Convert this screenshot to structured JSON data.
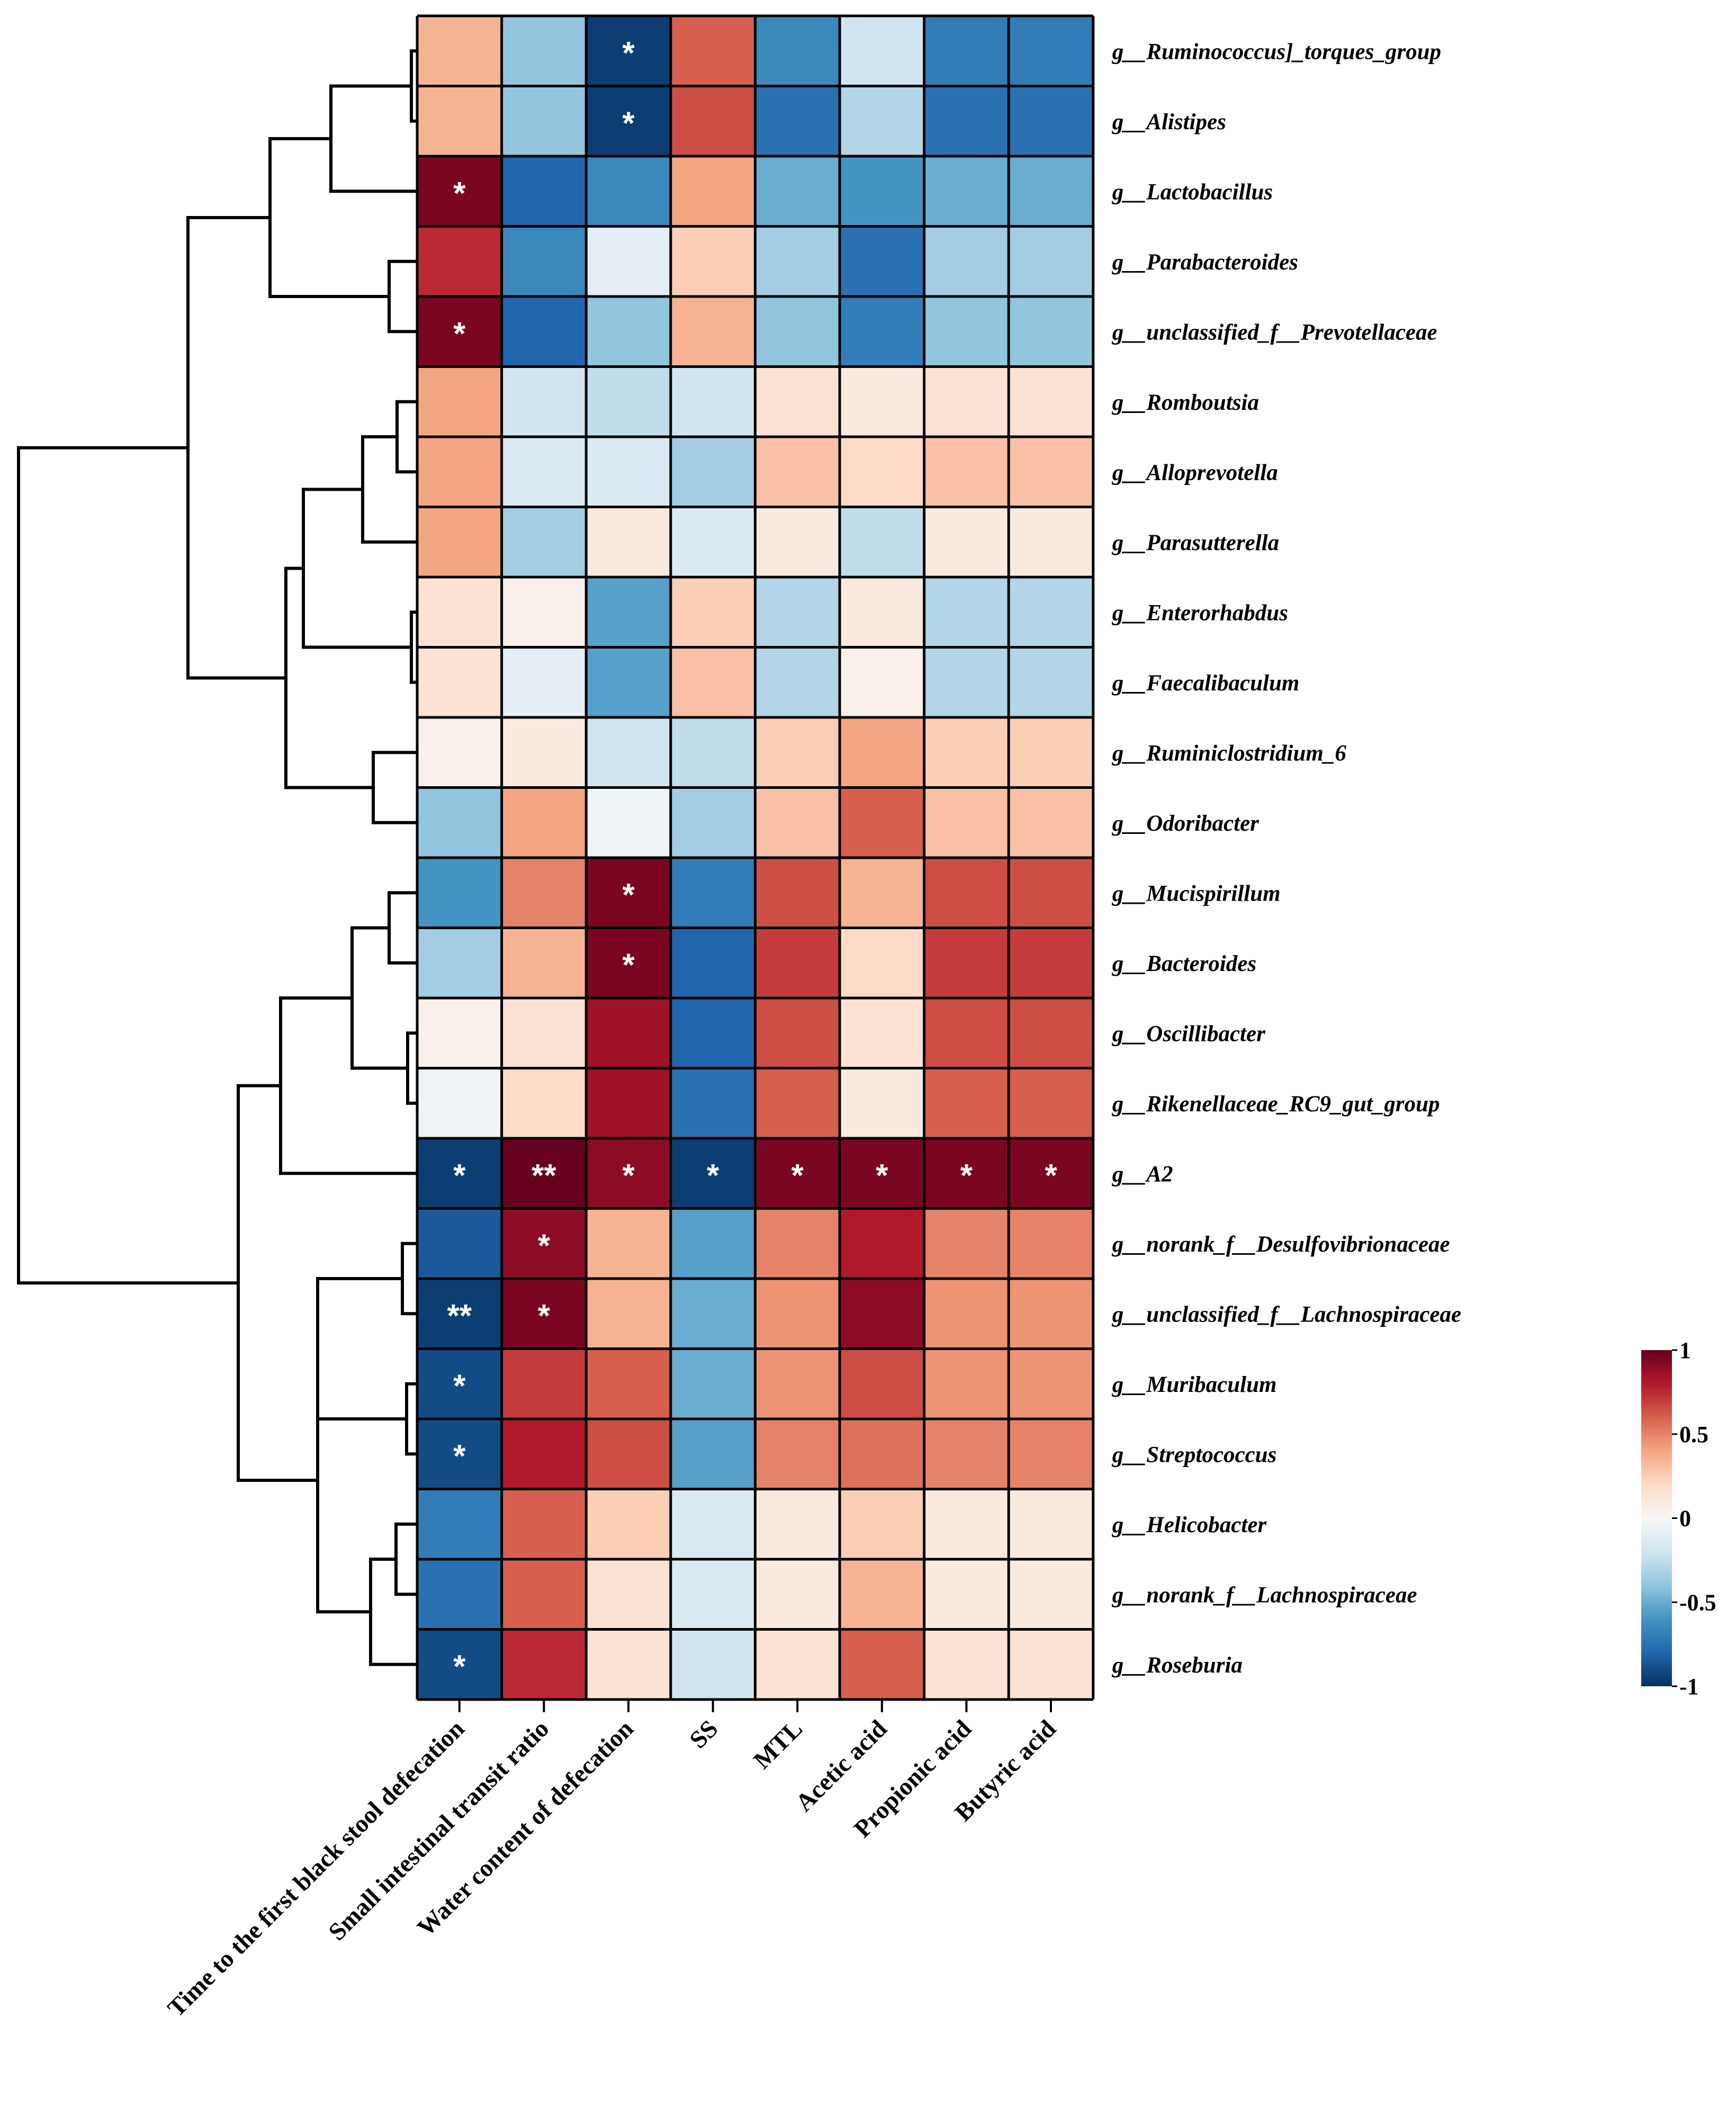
{
  "chart_data": {
    "type": "heatmap",
    "title": "",
    "columns": [
      "Time to the first black stool defecation",
      "Small intestinal transit ratio",
      "Water content of defecation",
      "SS",
      "MTL",
      "Acetic acid",
      "Propionic acid",
      "Butyric acid"
    ],
    "rows": [
      "g__Ruminococcus]_torques_group",
      "g__Alistipes",
      "g__Lactobacillus",
      "g__Parabacteroides",
      "g__unclassified_f__Prevotellaceae",
      "g__Romboutsia",
      "g__Alloprevotella",
      "g__Parasutterella",
      "g__Enterorhabdus",
      "g__Faecalibaculum",
      "g__Ruminiclostridium_6",
      "g__Odoribacter",
      "g__Mucispirillum",
      "g__Bacteroides",
      "g__Oscillibacter",
      "g__Rikenellaceae_RC9_gut_group",
      "g__A2",
      "g__norank_f__Desulfovibrionaceae",
      "g__unclassified_f__Lachnospiraceae",
      "g__Muribaculum",
      "g__Streptococcus",
      "g__Helicobacter",
      "g__norank_f__Lachnospiraceae",
      "g__Roseburia"
    ],
    "values": [
      [
        0.35,
        -0.4,
        -0.95,
        0.6,
        -0.65,
        -0.2,
        -0.7,
        -0.7
      ],
      [
        0.35,
        -0.4,
        -0.95,
        0.65,
        -0.75,
        -0.3,
        -0.75,
        -0.75
      ],
      [
        0.95,
        -0.8,
        -0.65,
        0.4,
        -0.5,
        -0.6,
        -0.5,
        -0.5
      ],
      [
        0.75,
        -0.65,
        -0.1,
        0.25,
        -0.35,
        -0.75,
        -0.35,
        -0.35
      ],
      [
        0.95,
        -0.8,
        -0.4,
        0.35,
        -0.4,
        -0.7,
        -0.4,
        -0.4
      ],
      [
        0.4,
        -0.2,
        -0.25,
        -0.2,
        0.15,
        0.1,
        0.15,
        0.15
      ],
      [
        0.4,
        -0.15,
        -0.15,
        -0.35,
        0.3,
        0.2,
        0.3,
        0.3
      ],
      [
        0.4,
        -0.35,
        0.1,
        -0.15,
        0.1,
        -0.25,
        0.1,
        0.1
      ],
      [
        0.15,
        0.05,
        -0.55,
        0.25,
        -0.3,
        0.1,
        -0.3,
        -0.3
      ],
      [
        0.15,
        -0.1,
        -0.55,
        0.3,
        -0.3,
        0.05,
        -0.3,
        -0.3
      ],
      [
        0.05,
        0.1,
        -0.2,
        -0.25,
        0.25,
        0.4,
        0.25,
        0.25
      ],
      [
        -0.4,
        0.4,
        -0.05,
        -0.35,
        0.3,
        0.6,
        0.3,
        0.3
      ],
      [
        -0.6,
        0.5,
        0.95,
        -0.7,
        0.65,
        0.35,
        0.65,
        0.65
      ],
      [
        -0.35,
        0.35,
        0.95,
        -0.8,
        0.7,
        0.2,
        0.7,
        0.7
      ],
      [
        0.05,
        0.15,
        0.85,
        -0.8,
        0.65,
        0.15,
        0.65,
        0.65
      ],
      [
        -0.05,
        0.2,
        0.85,
        -0.75,
        0.6,
        0.1,
        0.6,
        0.6
      ],
      [
        -0.95,
        1.0,
        0.9,
        -0.95,
        0.95,
        0.95,
        0.95,
        0.95
      ],
      [
        -0.85,
        0.9,
        0.35,
        -0.55,
        0.5,
        0.8,
        0.5,
        0.5
      ],
      [
        -0.95,
        0.95,
        0.35,
        -0.5,
        0.45,
        0.9,
        0.45,
        0.45
      ],
      [
        -0.9,
        0.7,
        0.6,
        -0.5,
        0.45,
        0.65,
        0.45,
        0.45
      ],
      [
        -0.9,
        0.8,
        0.65,
        -0.55,
        0.5,
        0.55,
        0.5,
        0.5
      ],
      [
        -0.7,
        0.6,
        0.25,
        -0.15,
        0.1,
        0.25,
        0.1,
        0.1
      ],
      [
        -0.75,
        0.6,
        0.15,
        -0.15,
        0.1,
        0.35,
        0.1,
        0.1
      ],
      [
        -0.9,
        0.75,
        0.15,
        -0.2,
        0.15,
        0.6,
        0.15,
        0.15
      ]
    ],
    "significance": [
      [
        "",
        "",
        "*",
        "",
        "",
        "",
        "",
        ""
      ],
      [
        "",
        "",
        "*",
        "",
        "",
        "",
        "",
        ""
      ],
      [
        "*",
        "",
        "",
        "",
        "",
        "",
        "",
        ""
      ],
      [
        "",
        "",
        "",
        "",
        "",
        "",
        "",
        ""
      ],
      [
        "*",
        "",
        "",
        "",
        "",
        "",
        "",
        ""
      ],
      [
        "",
        "",
        "",
        "",
        "",
        "",
        "",
        ""
      ],
      [
        "",
        "",
        "",
        "",
        "",
        "",
        "",
        ""
      ],
      [
        "",
        "",
        "",
        "",
        "",
        "",
        "",
        ""
      ],
      [
        "",
        "",
        "",
        "",
        "",
        "",
        "",
        ""
      ],
      [
        "",
        "",
        "",
        "",
        "",
        "",
        "",
        ""
      ],
      [
        "",
        "",
        "",
        "",
        "",
        "",
        "",
        ""
      ],
      [
        "",
        "",
        "",
        "",
        "",
        "",
        "",
        ""
      ],
      [
        "",
        "",
        "*",
        "",
        "",
        "",
        "",
        ""
      ],
      [
        "",
        "",
        "*",
        "",
        "",
        "",
        "",
        ""
      ],
      [
        "",
        "",
        "",
        "",
        "",
        "",
        "",
        ""
      ],
      [
        "",
        "",
        "",
        "",
        "",
        "",
        "",
        ""
      ],
      [
        "*",
        "**",
        "*",
        "*",
        "*",
        "*",
        "*",
        "*"
      ],
      [
        "",
        "*",
        "",
        "",
        "",
        "",
        "",
        ""
      ],
      [
        "**",
        "*",
        "",
        "",
        "",
        "",
        "",
        ""
      ],
      [
        "*",
        "",
        "",
        "",
        "",
        "",
        "",
        ""
      ],
      [
        "*",
        "",
        "",
        "",
        "",
        "",
        "",
        ""
      ],
      [
        "",
        "",
        "",
        "",
        "",
        "",
        "",
        ""
      ],
      [
        "",
        "",
        "",
        "",
        "",
        "",
        "",
        ""
      ],
      [
        "*",
        "",
        "",
        "",
        "",
        "",
        "",
        ""
      ]
    ],
    "color_scale": {
      "range": [
        -1,
        1
      ],
      "ticks": [
        "1",
        "0.5",
        "0",
        "-0.5",
        "-1"
      ],
      "colors": [
        "#053061",
        "#2166ac",
        "#4393c3",
        "#92c5de",
        "#d1e5f0",
        "#f7f7f7",
        "#fddbc7",
        "#f4a582",
        "#d6604d",
        "#b2182b",
        "#67001f"
      ]
    },
    "dendrogram": "row clustering tree on left side"
  }
}
